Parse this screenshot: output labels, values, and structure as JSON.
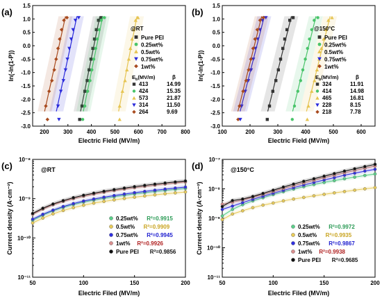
{
  "chart_data": [
    {
      "type": "scatter",
      "panel_label": "(a)",
      "condition_label": "@RT",
      "xlabel": "Electric Field (MV/m)",
      "ylabel": "ln(-ln(1-P))",
      "xlim": [
        150,
        800
      ],
      "ylim": [
        -3.0,
        1.5
      ],
      "xticks": [
        "200",
        "300",
        "400",
        "500",
        "600",
        "700",
        "800"
      ],
      "yticks": [
        "-3.0",
        "-2.5",
        "-2.0",
        "-1.5",
        "-1.0",
        "-0.5",
        "0.0",
        "0.5",
        "1.0",
        "1.5"
      ],
      "table_header": {
        "eb": "E_b(MV/m)",
        "beta": "β"
      },
      "series": [
        {
          "name": "Pure PEI",
          "color": "#333333",
          "shape": "square",
          "eb": "413",
          "beta": "14.99",
          "x": [
            360,
            372,
            382,
            390,
            398,
            406,
            413,
            421,
            430,
            442
          ],
          "y": [
            -2.25,
            -1.7,
            -1.3,
            -0.9,
            -0.5,
            -0.1,
            0.25,
            0.6,
            0.95,
            1.05
          ]
        },
        {
          "name": "0.25wt%",
          "color": "#49c46a",
          "shape": "circle",
          "eb": "424",
          "beta": "15.35",
          "x": [
            372,
            384,
            394,
            402,
            410,
            418,
            425,
            433,
            442,
            455
          ],
          "y": [
            -2.25,
            -1.7,
            -1.3,
            -0.9,
            -0.5,
            -0.1,
            0.25,
            0.6,
            0.95,
            1.05
          ]
        },
        {
          "name": "0.5wt%",
          "color": "#e6c451",
          "shape": "triangle-up",
          "eb": "573",
          "beta": "21.87",
          "x": [
            520,
            532,
            543,
            551,
            559,
            566,
            573,
            580,
            588,
            598
          ],
          "y": [
            -2.25,
            -1.7,
            -1.3,
            -0.9,
            -0.5,
            -0.1,
            0.25,
            0.6,
            0.95,
            1.05
          ]
        },
        {
          "name": "0.75wt%",
          "color": "#2a2adb",
          "shape": "triangle-down",
          "eb": "314",
          "beta": "11.50",
          "x": [
            258,
            270,
            281,
            290,
            298,
            306,
            314,
            322,
            332,
            346
          ],
          "y": [
            -2.25,
            -1.7,
            -1.3,
            -0.9,
            -0.5,
            -0.1,
            0.25,
            0.6,
            0.95,
            1.05
          ]
        },
        {
          "name": "1wt%",
          "color": "#a84a1e",
          "shape": "diamond",
          "eb": "264",
          "beta": "9.69",
          "x": [
            206,
            220,
            232,
            242,
            250,
            258,
            265,
            273,
            283,
            296
          ],
          "y": [
            -2.25,
            -1.7,
            -1.3,
            -0.9,
            -0.5,
            -0.1,
            0.25,
            0.6,
            0.95,
            1.05
          ]
        }
      ],
      "extra_points": [
        {
          "color": "#a84a1e",
          "shape": "diamond",
          "x": 213,
          "y": -2.75
        },
        {
          "color": "#2a2adb",
          "shape": "triangle-down",
          "x": 262,
          "y": -2.75
        },
        {
          "color": "#333333",
          "shape": "square",
          "x": 350,
          "y": -2.75
        },
        {
          "color": "#49c46a",
          "shape": "circle",
          "x": 363,
          "y": -2.75
        },
        {
          "color": "#e6c451",
          "shape": "triangle-up",
          "x": 520,
          "y": -2.75
        }
      ]
    },
    {
      "type": "scatter",
      "panel_label": "(b)",
      "condition_label": "@150°C",
      "xlabel": "Electric Field (MV/m)",
      "ylabel": "ln(-ln(1-P))",
      "xlim": [
        100,
        650
      ],
      "ylim": [
        -3.0,
        1.5
      ],
      "xticks": [
        "100",
        "200",
        "300",
        "400",
        "500",
        "600"
      ],
      "yticks": [
        "-3.0",
        "-2.5",
        "-2.0",
        "-1.5",
        "-1.0",
        "-0.5",
        "0.0",
        "0.5",
        "1.0",
        "1.5"
      ],
      "table_header": {
        "eb": "E_b(MV/m)",
        "beta": "β"
      },
      "series": [
        {
          "name": "Pure PEI",
          "color": "#333333",
          "shape": "square",
          "eb": "324",
          "beta": "11.91",
          "x": [
            270,
            282,
            293,
            302,
            310,
            318,
            325,
            333,
            343,
            355
          ],
          "y": [
            -2.25,
            -1.7,
            -1.3,
            -0.9,
            -0.5,
            -0.1,
            0.25,
            0.6,
            0.95,
            1.05
          ]
        },
        {
          "name": "0.25wt%",
          "color": "#49c46a",
          "shape": "circle",
          "eb": "414",
          "beta": "14.98",
          "x": [
            360,
            372,
            382,
            390,
            399,
            407,
            414,
            422,
            431,
            444
          ],
          "y": [
            -2.25,
            -1.7,
            -1.3,
            -0.9,
            -0.5,
            -0.1,
            0.25,
            0.6,
            0.95,
            1.05
          ]
        },
        {
          "name": "0.5wt%",
          "color": "#e6c451",
          "shape": "triangle-up",
          "eb": "465",
          "beta": "16.81",
          "x": [
            410,
            422,
            432,
            441,
            449,
            457,
            465,
            473,
            482,
            495
          ],
          "y": [
            -2.25,
            -1.7,
            -1.3,
            -0.9,
            -0.5,
            -0.1,
            0.25,
            0.6,
            0.95,
            1.05
          ]
        },
        {
          "name": "0.75wt%",
          "color": "#2a2adb",
          "shape": "triangle-down",
          "eb": "228",
          "beta": "8.15",
          "x": [
            170,
            183,
            194,
            204,
            212,
            220,
            228,
            236,
            245,
            257
          ],
          "y": [
            -2.25,
            -1.7,
            -1.3,
            -0.9,
            -0.5,
            -0.1,
            0.25,
            0.6,
            0.95,
            1.05
          ]
        },
        {
          "name": "1wt%",
          "color": "#a84a1e",
          "shape": "diamond",
          "eb": "218",
          "beta": "7.78",
          "x": [
            162,
            175,
            186,
            195,
            203,
            211,
            218,
            226,
            236,
            248
          ],
          "y": [
            -2.25,
            -1.7,
            -1.3,
            -0.9,
            -0.5,
            -0.1,
            0.25,
            0.6,
            0.95,
            1.05
          ]
        }
      ],
      "extra_points": [
        {
          "color": "#a84a1e",
          "shape": "diamond",
          "x": 157,
          "y": -2.75
        },
        {
          "color": "#2a2adb",
          "shape": "triangle-down",
          "x": 165,
          "y": -2.75
        },
        {
          "color": "#333333",
          "shape": "square",
          "x": 262,
          "y": -2.75
        },
        {
          "color": "#49c46a",
          "shape": "circle",
          "x": 352,
          "y": -2.75
        },
        {
          "color": "#e6c451",
          "shape": "triangle-up",
          "x": 406,
          "y": -2.75
        }
      ]
    },
    {
      "type": "scatter",
      "panel_label": "(c)",
      "condition_label": "@RT",
      "xlabel": "Electric Filed  (MV/m)",
      "ylabel": "Current density  (A·cm⁻²)",
      "xscale": "linear",
      "yscale": "log",
      "xlim": [
        50,
        200
      ],
      "ylim": [
        1e-11,
        1e-08
      ],
      "xticks": [
        "50",
        "100",
        "150",
        "200"
      ],
      "yticks": [
        "10⁻¹¹",
        "10⁻¹⁰",
        "10⁻⁹",
        "10⁻⁸"
      ],
      "x": [
        50,
        60,
        70,
        80,
        90,
        100,
        110,
        120,
        130,
        140,
        150,
        160,
        170,
        180,
        190,
        200
      ],
      "series": [
        {
          "name": "0.25wt%",
          "color": "#5ccf8a",
          "r2": "R²=0.9915",
          "r2_color": "#2a9a55",
          "y": [
            2.8e-10,
            3.8e-10,
            4.9e-10,
            6e-10,
            7.1e-10,
            8.2e-10,
            9.2e-10,
            1.02e-09,
            1.12e-09,
            1.22e-09,
            1.32e-09,
            1.42e-09,
            1.52e-09,
            1.62e-09,
            1.72e-09,
            1.82e-09
          ]
        },
        {
          "name": "0.5wt%",
          "color": "#e8cb5a",
          "r2": "R²=0.9909",
          "r2_color": "#c9a420",
          "y": [
            2.4e-10,
            3.2e-10,
            4.1e-10,
            5e-10,
            5.9e-10,
            6.8e-10,
            7.7e-10,
            8.5e-10,
            9.3e-10,
            1.01e-09,
            1.09e-09,
            1.17e-09,
            1.25e-09,
            1.33e-09,
            1.4e-09,
            1.48e-09
          ]
        },
        {
          "name": "0.75wt%",
          "color": "#3030e0",
          "r2": "R²=0.9945",
          "r2_color": "#2020d0",
          "y": [
            3e-10,
            4e-10,
            5.1e-10,
            6.3e-10,
            7.5e-10,
            8.7e-10,
            9.8e-10,
            1.09e-09,
            1.2e-09,
            1.31e-09,
            1.42e-09,
            1.53e-09,
            1.64e-09,
            1.75e-09,
            1.86e-09,
            1.97e-09
          ]
        },
        {
          "name": "1wt%",
          "color": "#d98e8e",
          "r2": "R²=0.9926",
          "r2_color": "#b02020",
          "y": [
            4e-10,
            5.4e-10,
            7e-10,
            8.5e-10,
            1e-09,
            1.15e-09,
            1.3e-09,
            1.45e-09,
            1.6e-09,
            1.75e-09,
            1.9e-09,
            2.05e-09,
            2.2e-09,
            2.35e-09,
            2.5e-09,
            2.65e-09
          ]
        },
        {
          "name": "Pure PEI",
          "color": "#111111",
          "r2": "R²=0.9856",
          "r2_color": "#111111",
          "y": [
            4.2e-10,
            5.7e-10,
            7.3e-10,
            8.9e-10,
            1.06e-09,
            1.22e-09,
            1.38e-09,
            1.54e-09,
            1.7e-09,
            1.86e-09,
            2.02e-09,
            2.18e-09,
            2.34e-09,
            2.5e-09,
            2.66e-09,
            2.82e-09
          ]
        }
      ]
    },
    {
      "type": "scatter",
      "panel_label": "(d)",
      "condition_label": "@150°C",
      "xlabel": "Electric Filed  (MV/m)",
      "ylabel": "Current density  (A·cm⁻²)",
      "xscale": "linear",
      "yscale": "log",
      "xlim": [
        50,
        200
      ],
      "ylim": [
        1e-11,
        1e-07
      ],
      "xticks": [
        "50",
        "100",
        "150",
        "200"
      ],
      "yticks": [
        "10⁻¹¹",
        "10⁻¹⁰",
        "10⁻⁹",
        "10⁻⁸",
        "10⁻⁷"
      ],
      "x": [
        50,
        60,
        70,
        80,
        90,
        100,
        110,
        120,
        130,
        140,
        150,
        160,
        170,
        180,
        190,
        200
      ],
      "series": [
        {
          "name": "0.25wt%",
          "color": "#5ccf8a",
          "r2": "R²=0.9972",
          "r2_color": "#2a9a55",
          "y": [
            1.2e-09,
            2e-09,
            2.9e-09,
            3.9e-09,
            5e-09,
            6.4e-09,
            8e-09,
            9.8e-09,
            1.18e-08,
            1.4e-08,
            1.65e-08,
            1.9e-08,
            2.2e-08,
            2.5e-08,
            2.85e-08,
            3.2e-08
          ]
        },
        {
          "name": "0.5wt%",
          "color": "#e8cb5a",
          "r2": "R²=0.9935",
          "r2_color": "#c9a420",
          "y": [
            9e-10,
            1.4e-09,
            1.8e-09,
            2.3e-09,
            2.8e-09,
            3.3e-09,
            3.9e-09,
            4.5e-09,
            5.1e-09,
            5.8e-09,
            6.5e-09,
            7.3e-09,
            8.1e-09,
            9e-09,
            1e-08,
            1.1e-08
          ]
        },
        {
          "name": "0.75wt%",
          "color": "#3030e0",
          "r2": "R²=0.9867",
          "r2_color": "#2020d0",
          "y": [
            2e-09,
            2.6e-09,
            3.4e-09,
            4.4e-09,
            5.6e-09,
            7.1e-09,
            8.9e-09,
            1.1e-08,
            1.35e-08,
            1.65e-08,
            2e-08,
            2.4e-08,
            2.9e-08,
            3.4e-08,
            4e-08,
            4.6e-08
          ]
        },
        {
          "name": "1wt%",
          "color": "#d98e8e",
          "r2": "R²=0.9938",
          "r2_color": "#b02020",
          "y": [
            3e-09,
            3.5e-09,
            4.2e-09,
            5.2e-09,
            6.5e-09,
            8.2e-09,
            1.03e-08,
            1.28e-08,
            1.58e-08,
            1.95e-08,
            2.4e-08,
            2.9e-08,
            3.5e-08,
            4.2e-08,
            5e-08,
            5.9e-08
          ]
        },
        {
          "name": "Pure PEI",
          "color": "#111111",
          "r2": "R²=0.9685",
          "r2_color": "#111111",
          "y": [
            2.5e-09,
            4e-09,
            4.5e-09,
            5.5e-09,
            7e-09,
            9e-09,
            1.15e-08,
            1.45e-08,
            1.8e-08,
            2.2e-08,
            2.7e-08,
            3.3e-08,
            4e-08,
            4.8e-08,
            5.7e-08,
            6.8e-08
          ]
        }
      ]
    }
  ]
}
